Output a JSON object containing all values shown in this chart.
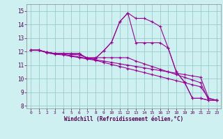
{
  "xlabel": "Windchill (Refroidissement éolien,°C)",
  "x_ticks": [
    0,
    1,
    2,
    3,
    4,
    5,
    6,
    7,
    8,
    9,
    10,
    11,
    12,
    13,
    14,
    15,
    16,
    17,
    18,
    19,
    20,
    21,
    22,
    23
  ],
  "ylim": [
    7.8,
    15.5
  ],
  "xlim": [
    -0.5,
    23.5
  ],
  "yticks": [
    8,
    9,
    10,
    11,
    12,
    13,
    14,
    15
  ],
  "background_color": "#cff0f0",
  "line_color": "#990099",
  "grid_color": "#99cccc",
  "lines": [
    {
      "x": [
        0,
        1,
        2,
        3,
        4,
        5,
        6,
        7,
        8,
        9,
        10,
        11,
        12,
        13,
        14,
        15,
        16,
        17,
        18,
        19,
        20,
        21,
        22,
        23
      ],
      "y": [
        12.1,
        12.1,
        11.95,
        11.85,
        11.85,
        11.85,
        11.85,
        11.5,
        11.5,
        12.05,
        12.7,
        14.2,
        14.85,
        14.45,
        14.45,
        14.2,
        13.85,
        12.25,
        10.5,
        9.75,
        8.55,
        8.55,
        8.4,
        8.4
      ]
    },
    {
      "x": [
        0,
        1,
        2,
        3,
        4,
        5,
        6,
        7,
        8,
        9,
        10,
        11,
        12,
        13,
        14,
        15,
        16,
        17,
        18,
        19,
        20,
        21,
        22,
        23
      ],
      "y": [
        12.1,
        12.1,
        11.95,
        11.85,
        11.85,
        11.85,
        11.85,
        11.5,
        11.5,
        12.05,
        12.7,
        14.2,
        14.85,
        12.65,
        12.65,
        12.65,
        12.65,
        12.25,
        10.5,
        9.75,
        8.55,
        8.55,
        8.4,
        8.4
      ]
    },
    {
      "x": [
        0,
        1,
        2,
        3,
        4,
        5,
        6,
        7,
        8,
        9,
        10,
        11,
        12,
        13,
        14,
        15,
        16,
        17,
        18,
        19,
        20,
        21,
        22,
        23
      ],
      "y": [
        12.1,
        12.1,
        11.95,
        11.85,
        11.85,
        11.8,
        11.75,
        11.55,
        11.55,
        11.55,
        11.55,
        11.55,
        11.55,
        11.3,
        11.1,
        10.9,
        10.7,
        10.5,
        10.3,
        10.1,
        9.9,
        9.7,
        8.4,
        8.4
      ]
    },
    {
      "x": [
        0,
        1,
        2,
        3,
        4,
        5,
        6,
        7,
        8,
        9,
        10,
        11,
        12,
        13,
        14,
        15,
        16,
        17,
        18,
        19,
        20,
        21,
        22,
        23
      ],
      "y": [
        12.1,
        12.1,
        11.95,
        11.85,
        11.8,
        11.7,
        11.6,
        11.5,
        11.4,
        11.3,
        11.2,
        11.1,
        11.0,
        10.9,
        10.8,
        10.7,
        10.6,
        10.5,
        10.4,
        10.3,
        10.2,
        10.1,
        8.55,
        8.4
      ]
    },
    {
      "x": [
        0,
        1,
        2,
        3,
        4,
        5,
        6,
        7,
        8,
        9,
        10,
        11,
        12,
        13,
        14,
        15,
        16,
        17,
        18,
        19,
        20,
        21,
        22,
        23
      ],
      "y": [
        12.1,
        12.1,
        11.9,
        11.8,
        11.75,
        11.65,
        11.55,
        11.45,
        11.35,
        11.2,
        11.05,
        10.9,
        10.75,
        10.6,
        10.45,
        10.3,
        10.15,
        10.0,
        9.85,
        9.7,
        9.55,
        9.4,
        8.55,
        8.4
      ]
    }
  ]
}
